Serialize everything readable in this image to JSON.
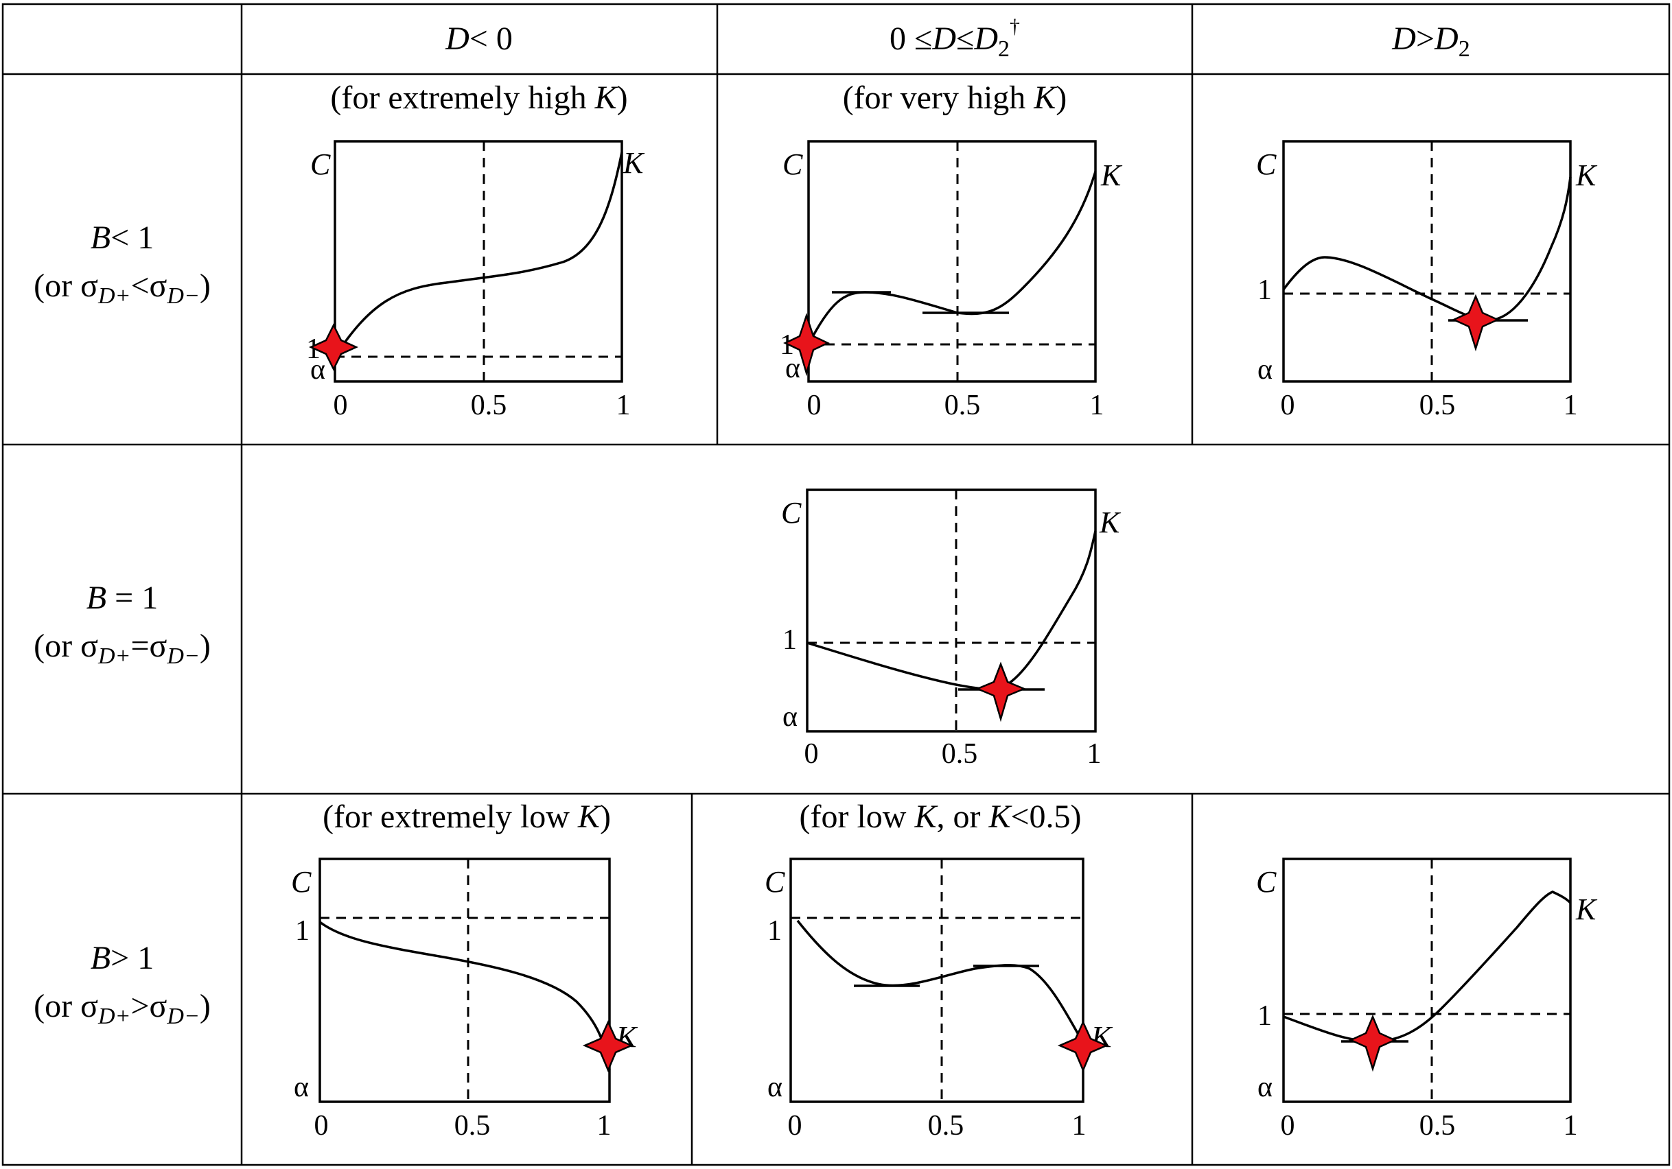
{
  "headers": {
    "col1": {
      "var": "D",
      "rel": "< 0"
    },
    "col2": {
      "pre": "0 ≤",
      "var1": "D",
      "mid": "≤",
      "var2": "D",
      "sub": "2",
      "sup": "†"
    },
    "col3": {
      "var1": "D",
      "rel": ">",
      "var2": "D",
      "sub": "2"
    }
  },
  "rows": [
    {
      "cond_var": "B",
      "cond_rel": "< 1",
      "alt_pre": "(or σ",
      "alt_sub1": "D+",
      "alt_op": "<σ",
      "alt_sub2": "D−",
      "alt_post": ")"
    },
    {
      "cond_var": "B",
      "cond_rel": " = 1",
      "alt_pre": "(or σ",
      "alt_sub1": "D+",
      "alt_op": "=σ",
      "alt_sub2": "D−",
      "alt_post": ")"
    },
    {
      "cond_var": "B",
      "cond_rel": "> 1",
      "alt_pre": "(or σ",
      "alt_sub1": "D+",
      "alt_op": ">σ",
      "alt_sub2": "D−",
      "alt_post": ")"
    }
  ],
  "notes": {
    "r1c1": {
      "pre": "(for extremely high ",
      "var": "K",
      "post": ")"
    },
    "r1c2": {
      "pre": "(for very high ",
      "var": "K",
      "post": ")"
    },
    "r3c1": {
      "pre": "(for extremely low ",
      "var": "K",
      "post": ")"
    },
    "r3c2": {
      "pre": "(for low ",
      "var": "K",
      "mid": ", or ",
      "var2": "K",
      "post": "<0.5)"
    }
  },
  "axis": {
    "y_label": "C",
    "curve_label": "K",
    "one_label": "1",
    "alpha_label": "α",
    "x_ticks": [
      "0",
      "0.5",
      "1"
    ]
  },
  "colors": {
    "star_fill": "#e8141b",
    "line": "#000000"
  },
  "plots": [
    {
      "id": "r1c1",
      "desc": "increasing S-curve starting at 1 (minimum at x=0)",
      "min_at": 0
    },
    {
      "id": "r1c2",
      "desc": "local max near 0.2, local min near 0.5, minimum at x=0",
      "min_at": 0
    },
    {
      "id": "r1c3",
      "desc": "hump near 0.13, minimum near 0.65 below 1",
      "min_at": 0.65
    },
    {
      "id": "r2c2",
      "desc": "decreasing from 1 to minimum near 0.65 then rising to K",
      "min_at": 0.65
    },
    {
      "id": "r3c1",
      "desc": "decreasing from 1 to K at x=1 (minimum at x=1)",
      "min_at": 1
    },
    {
      "id": "r3c2",
      "desc": "local min near 0.3, local max near 0.7, minimum at x=1",
      "min_at": 1
    },
    {
      "id": "r3c3",
      "desc": "minimum near 0.3 below 1, rising to max near 0.92",
      "min_at": 0.3
    }
  ]
}
